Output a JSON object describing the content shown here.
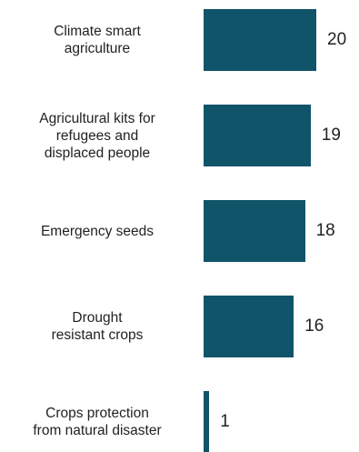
{
  "chart_data": {
    "type": "bar",
    "orientation": "horizontal",
    "categories": [
      "Climate smart\nagriculture",
      "Agricultural kits for\nrefugees and\ndisplaced people",
      "Emergency seeds",
      "Drought\nresistant crops",
      "Crops protection\nfrom natural disaster"
    ],
    "values": [
      20,
      19,
      18,
      16,
      1
    ],
    "color": "#0f5468"
  }
}
